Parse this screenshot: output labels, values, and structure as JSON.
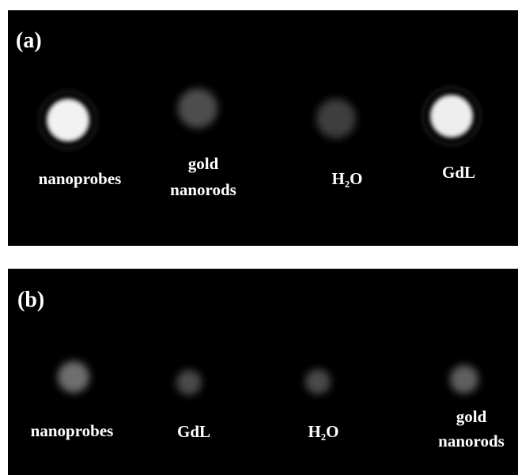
{
  "panels": [
    {
      "label": "(a)",
      "samples": [
        {
          "lines": [
            "nanoprobes"
          ]
        },
        {
          "lines": [
            "gold",
            "nanorods"
          ]
        },
        {
          "lines": [
            "H₂O"
          ]
        },
        {
          "lines": [
            "GdL"
          ]
        }
      ]
    },
    {
      "label": "(b)",
      "samples": [
        {
          "lines": [
            "nanoprobes"
          ]
        },
        {
          "lines": [
            "GdL"
          ]
        },
        {
          "lines": [
            "H₂O"
          ]
        },
        {
          "lines": [
            "gold",
            "nanorods"
          ]
        }
      ]
    }
  ]
}
